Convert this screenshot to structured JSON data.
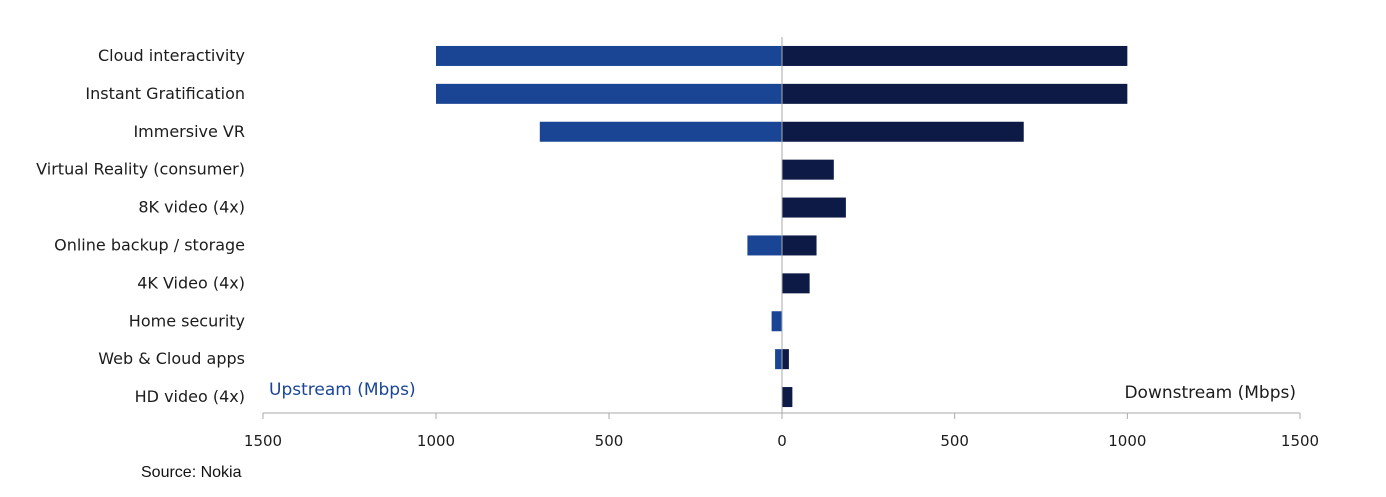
{
  "chart_data": {
    "type": "bar",
    "orientation": "horizontal-diverging",
    "categories": [
      "Cloud interactivity",
      "Instant Gratification",
      "Immersive VR",
      "Virtual Reality (consumer)",
      "8K video (4x)",
      "Online backup / storage",
      "4K Video (4x)",
      "Home security",
      "Web & Cloud apps",
      "HD video (4x)"
    ],
    "series": [
      {
        "name": "Upstream (Mbps)",
        "side": "left",
        "values": [
          1000,
          1000,
          700,
          0,
          0,
          100,
          0,
          30,
          20,
          0
        ]
      },
      {
        "name": "Downstream (Mbps)",
        "side": "right",
        "values": [
          1000,
          1000,
          700,
          150,
          185,
          100,
          80,
          0,
          20,
          30
        ]
      }
    ],
    "xlim": [
      -1500,
      1500
    ],
    "ticks": [
      -1500,
      -1000,
      -500,
      0,
      500,
      1000,
      1500
    ],
    "tick_labels": [
      "1500",
      "1000",
      "500",
      "0",
      "500",
      "1000",
      "1500"
    ],
    "grid": false,
    "colors": {
      "upstream": "#1a4595",
      "downstream": "#0c1a45",
      "axis": "#a9a9a9",
      "upstream_label": "#1a4595",
      "downstream_label": "#1c1c1c"
    }
  },
  "source": "Source:  Nokia"
}
